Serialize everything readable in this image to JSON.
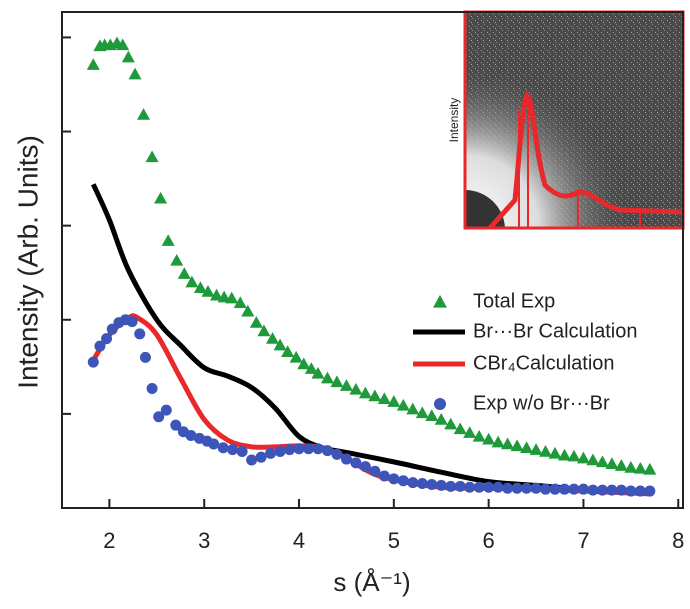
{
  "chart_data": {
    "type": "scatter-line",
    "x_label": "s (Å⁻¹)",
    "y_label": "Intensity (Arb. Units)",
    "inset_label": "Intensity",
    "xlim": [
      1.5,
      8.05
    ],
    "xticks": [
      2,
      3,
      4,
      5,
      6,
      7,
      8
    ],
    "ylim": [
      0,
      5.27
    ],
    "yticks": [
      1,
      2,
      3,
      4,
      5
    ],
    "series": [
      {
        "name": "Total Exp",
        "color": "#1e9a3a",
        "marker": "triangle",
        "x": [
          1.83,
          1.9,
          1.95,
          2.01,
          2.08,
          2.14,
          2.2,
          2.27,
          2.36,
          2.45,
          2.54,
          2.62,
          2.71,
          2.79,
          2.87,
          2.96,
          3.04,
          3.13,
          3.21,
          3.29,
          3.38,
          3.46,
          3.55,
          3.63,
          3.72,
          3.8,
          3.88,
          3.97,
          4.05,
          4.13,
          4.2,
          4.3,
          4.4,
          4.5,
          4.6,
          4.7,
          4.8,
          4.9,
          5.0,
          5.1,
          5.2,
          5.3,
          5.4,
          5.5,
          5.6,
          5.7,
          5.8,
          5.9,
          6.0,
          6.1,
          6.2,
          6.3,
          6.4,
          6.5,
          6.6,
          6.7,
          6.8,
          6.9,
          7.0,
          7.1,
          7.2,
          7.3,
          7.4,
          7.5,
          7.6,
          7.7
        ],
        "values": [
          4.71,
          4.91,
          4.92,
          4.92,
          4.94,
          4.92,
          4.79,
          4.61,
          4.18,
          3.73,
          3.29,
          2.84,
          2.63,
          2.49,
          2.4,
          2.34,
          2.3,
          2.26,
          2.24,
          2.23,
          2.18,
          2.09,
          1.97,
          1.88,
          1.8,
          1.73,
          1.66,
          1.6,
          1.53,
          1.48,
          1.43,
          1.38,
          1.34,
          1.3,
          1.26,
          1.22,
          1.19,
          1.16,
          1.13,
          1.09,
          1.05,
          1.01,
          0.98,
          0.94,
          0.89,
          0.84,
          0.8,
          0.76,
          0.73,
          0.7,
          0.68,
          0.66,
          0.64,
          0.62,
          0.6,
          0.58,
          0.56,
          0.55,
          0.53,
          0.51,
          0.49,
          0.47,
          0.45,
          0.43,
          0.42,
          0.41
        ]
      },
      {
        "name": "Br···Br Calculation",
        "color": "#000000",
        "marker": "line",
        "x": [
          1.83,
          2.0,
          2.2,
          2.5,
          2.75,
          3.0,
          3.25,
          3.5,
          3.75,
          4.0,
          4.25,
          4.5,
          5.0,
          5.5,
          6.0,
          6.5,
          7.0,
          7.7
        ],
        "values": [
          3.44,
          3.06,
          2.53,
          2.0,
          1.73,
          1.49,
          1.4,
          1.28,
          1.06,
          0.76,
          0.64,
          0.59,
          0.49,
          0.38,
          0.28,
          0.24,
          0.2,
          0.17
        ]
      },
      {
        "name": "CBr₄Calculation",
        "color": "#e8282b",
        "marker": "line",
        "x": [
          1.83,
          2.0,
          2.2,
          2.3,
          2.5,
          2.75,
          3.0,
          3.25,
          3.5,
          3.75,
          4.0,
          4.25,
          4.5,
          4.75,
          5.0,
          5.5,
          6.0,
          6.5,
          7.0,
          7.7
        ],
        "values": [
          1.57,
          1.84,
          2.02,
          2.02,
          1.84,
          1.38,
          0.94,
          0.72,
          0.65,
          0.65,
          0.66,
          0.64,
          0.53,
          0.38,
          0.3,
          0.22,
          0.21,
          0.2,
          0.18,
          0.15
        ]
      },
      {
        "name": "Exp w/o Br···Br",
        "color": "#3d55b8",
        "marker": "circle",
        "x": [
          1.83,
          1.9,
          1.97,
          2.03,
          2.1,
          2.17,
          2.24,
          2.32,
          2.38,
          2.45,
          2.52,
          2.6,
          2.7,
          2.78,
          2.86,
          2.95,
          3.03,
          3.1,
          3.2,
          3.3,
          3.4,
          3.5,
          3.6,
          3.7,
          3.8,
          3.9,
          4.0,
          4.1,
          4.2,
          4.3,
          4.4,
          4.5,
          4.6,
          4.7,
          4.8,
          4.9,
          5.0,
          5.1,
          5.2,
          5.3,
          5.4,
          5.5,
          5.6,
          5.7,
          5.8,
          5.9,
          6.0,
          6.1,
          6.2,
          6.3,
          6.4,
          6.5,
          6.6,
          6.7,
          6.8,
          6.9,
          7.0,
          7.1,
          7.2,
          7.3,
          7.4,
          7.5,
          7.6,
          7.7
        ],
        "values": [
          1.55,
          1.72,
          1.8,
          1.9,
          1.97,
          2.0,
          1.98,
          1.85,
          1.6,
          1.27,
          0.97,
          1.04,
          0.88,
          0.81,
          0.77,
          0.74,
          0.71,
          0.68,
          0.64,
          0.62,
          0.6,
          0.51,
          0.54,
          0.58,
          0.6,
          0.62,
          0.63,
          0.63,
          0.63,
          0.61,
          0.57,
          0.52,
          0.48,
          0.44,
          0.39,
          0.34,
          0.31,
          0.29,
          0.27,
          0.26,
          0.25,
          0.24,
          0.23,
          0.23,
          0.22,
          0.22,
          0.22,
          0.22,
          0.21,
          0.21,
          0.21,
          0.21,
          0.2,
          0.2,
          0.2,
          0.2,
          0.2,
          0.19,
          0.19,
          0.19,
          0.19,
          0.18,
          0.18,
          0.18
        ]
      }
    ]
  }
}
